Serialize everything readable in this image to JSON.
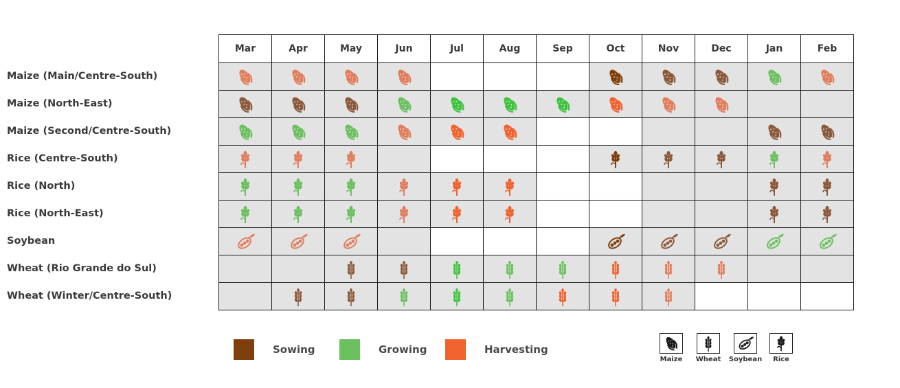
{
  "chart_data": {
    "type": "table",
    "months": [
      "Mar",
      "Apr",
      "May",
      "Jun",
      "Jul",
      "Aug",
      "Sep",
      "Oct",
      "Nov",
      "Dec",
      "Jan",
      "Feb"
    ],
    "colors": {
      "sowing_dark": "#7f3f0c",
      "sowing": "#8b5a3c",
      "growing": "#6cc05f",
      "growing_bright": "#3fc33f",
      "harvesting": "#f0622e",
      "harvesting_light": "#e07e5e",
      "cell_shaded": "#e3e3e3"
    },
    "rows": [
      {
        "label": "Maize (Main/Centre-South)",
        "crop": "maize",
        "cells": [
          "harvesting_light",
          "harvesting_light",
          "harvesting_light",
          "harvesting_light",
          null,
          null,
          null,
          "sowing_dark",
          "sowing",
          "sowing",
          "growing",
          "harvesting_light"
        ]
      },
      {
        "label": "Maize (North-East)",
        "crop": "maize",
        "cells": [
          "sowing",
          "sowing",
          "sowing",
          "growing",
          "growing_bright",
          "growing_bright",
          "growing_bright",
          "harvesting",
          "harvesting_light",
          "harvesting_light",
          "shaded",
          "shaded"
        ]
      },
      {
        "label": "Maize (Second/Centre-South)",
        "crop": "maize",
        "cells": [
          "growing",
          "growing",
          "growing",
          "harvesting_light",
          "harvesting",
          "harvesting",
          null,
          null,
          "shaded",
          "shaded",
          "sowing",
          "sowing"
        ]
      },
      {
        "label": "Rice (Centre-South)",
        "crop": "rice",
        "cells": [
          "harvesting_light",
          "harvesting_light",
          "harvesting_light",
          "shaded",
          null,
          null,
          null,
          "sowing_dark",
          "sowing",
          "sowing",
          "growing",
          "harvesting_light"
        ]
      },
      {
        "label": "Rice (North)",
        "crop": "rice",
        "cells": [
          "growing",
          "growing",
          "growing",
          "harvesting_light",
          "harvesting",
          "harvesting",
          null,
          null,
          "shaded",
          "shaded",
          "sowing",
          "sowing"
        ]
      },
      {
        "label": "Rice (North-East)",
        "crop": "rice",
        "cells": [
          "growing",
          "growing",
          "growing",
          "harvesting_light",
          "harvesting",
          "harvesting",
          null,
          null,
          "shaded",
          "shaded",
          "sowing",
          "sowing"
        ]
      },
      {
        "label": "Soybean",
        "crop": "soybean",
        "cells": [
          "harvesting_light",
          "harvesting_light",
          "harvesting_light",
          "shaded",
          null,
          null,
          null,
          "sowing_dark",
          "sowing",
          "sowing",
          "growing",
          "growing"
        ]
      },
      {
        "label": "Wheat (Rio Grande do Sul)",
        "crop": "wheat",
        "cells": [
          "shaded",
          "shaded",
          "sowing",
          "sowing",
          "growing_bright",
          "growing",
          "growing",
          "harvesting",
          "harvesting_light",
          "harvesting_light",
          "shaded",
          "shaded"
        ]
      },
      {
        "label": "Wheat (Winter/Centre-South)",
        "crop": "wheat",
        "cells": [
          "shaded",
          "sowing",
          "sowing",
          "growing",
          "growing_bright",
          "growing",
          "harvesting",
          "harvesting",
          "harvesting_light",
          null,
          null,
          null
        ]
      }
    ]
  },
  "legend": {
    "items": [
      {
        "label": "Sowing",
        "color": "#7f3f0c"
      },
      {
        "label": "Growing",
        "color": "#6cc05f"
      },
      {
        "label": "Harvesting",
        "color": "#f0622e"
      }
    ]
  },
  "crop_key": {
    "items": [
      {
        "label": "Maize",
        "icon": "maize-icon"
      },
      {
        "label": "Wheat",
        "icon": "wheat-icon"
      },
      {
        "label": "Soybean",
        "icon": "soybean-icon"
      },
      {
        "label": "Rice",
        "icon": "rice-icon"
      }
    ]
  }
}
